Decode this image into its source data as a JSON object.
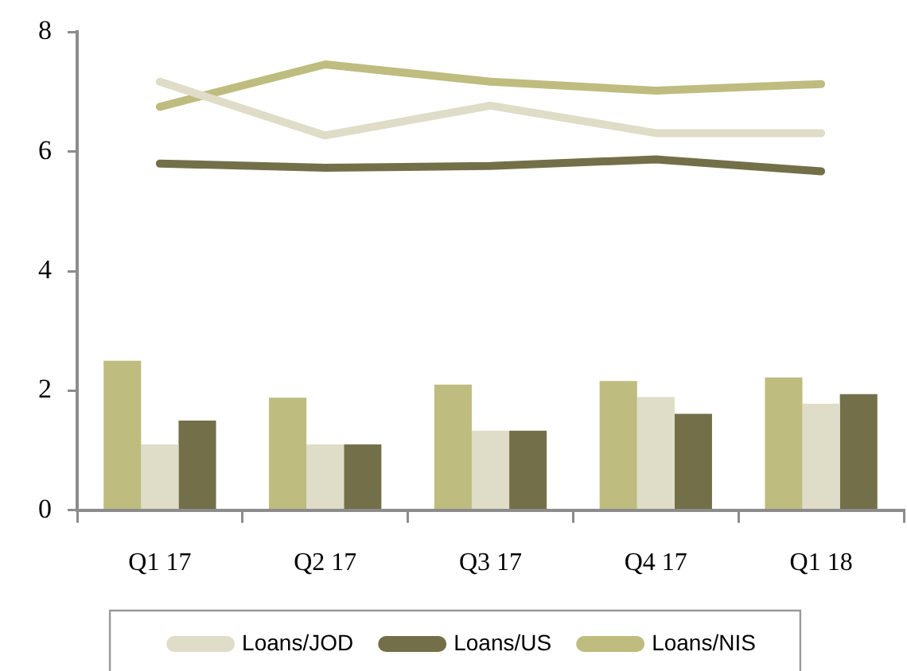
{
  "chart_data": {
    "type": "bar",
    "categories": [
      "Q1 17",
      "Q2 17",
      "Q3 17",
      "Q4 17",
      "Q1 18"
    ],
    "series": [
      {
        "color": "#bebc7f",
        "values": [
          2.5,
          1.88,
          2.1,
          2.16,
          2.22
        ]
      },
      {
        "color": "#dfdcc8",
        "values": [
          1.1,
          1.1,
          1.33,
          1.89,
          1.78
        ]
      },
      {
        "color": "#737049",
        "values": [
          1.5,
          1.1,
          1.33,
          1.61,
          1.94
        ]
      },
      {
        "type": "line",
        "name": "Loans/JOD",
        "color": "#dfdcc8",
        "values": [
          7.17,
          6.27,
          6.77,
          6.31,
          6.31
        ]
      },
      {
        "type": "line",
        "name": "Loans/US",
        "color": "#737049",
        "values": [
          5.8,
          5.73,
          5.76,
          5.87,
          5.67
        ]
      },
      {
        "type": "line",
        "name": "Loans/NIS",
        "color": "#bebc7f",
        "values": [
          6.75,
          7.46,
          7.17,
          7.02,
          7.13
        ]
      }
    ],
    "ylim": [
      0,
      8
    ],
    "yticks": [
      0,
      2,
      4,
      6,
      8
    ],
    "grid": false,
    "legend": "bottom",
    "marker": "none",
    "line_style": "solid"
  }
}
